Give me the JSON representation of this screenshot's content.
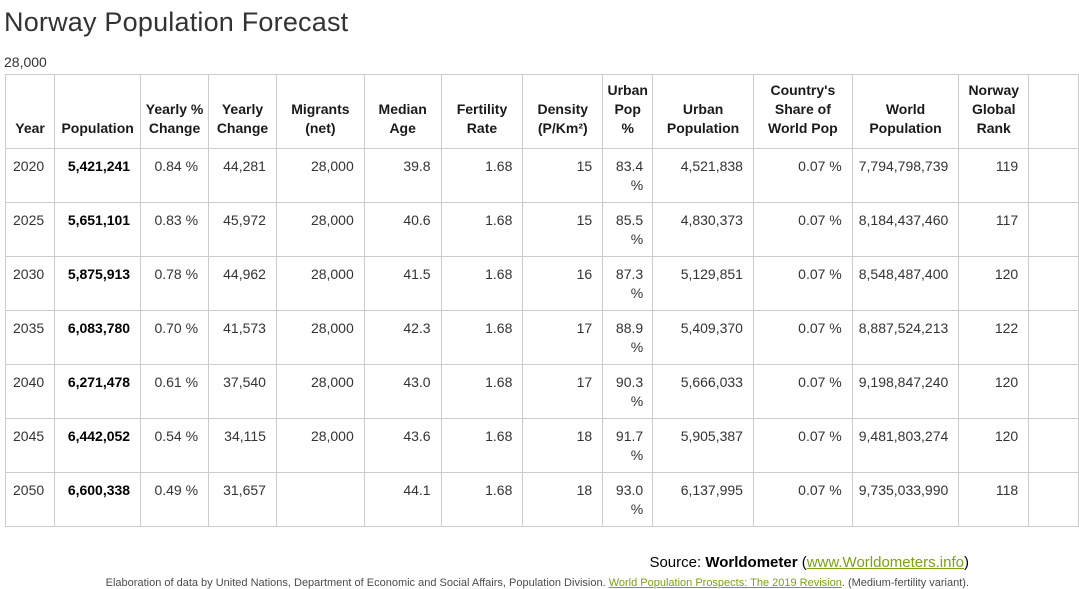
{
  "page": {
    "title": "Norway Population Forecast",
    "floating_label": "28,000"
  },
  "colors": {
    "link_green": "#7aa213",
    "border": "#cccccc",
    "title_text": "#333333",
    "body_text": "#333333"
  },
  "table": {
    "columns": [
      "Year",
      "Population",
      "Yearly % Change",
      "Yearly Change",
      "Migrants (net)",
      "Median Age",
      "Fertility Rate",
      "Density (P/Km²)",
      "Urban Pop %",
      "Urban Population",
      "Country's Share of World Pop",
      "World Population",
      "Norway Global Rank"
    ],
    "column_keys": [
      "year",
      "population",
      "yearly-pct-change",
      "yearly-change",
      "migrants-net",
      "median-age",
      "fertility-rate",
      "density",
      "urban-pop-pct",
      "urban-population",
      "share-of-world-pop",
      "world-population",
      "global-rank"
    ],
    "rows": [
      [
        "2020",
        "5,421,241",
        "0.84 %",
        "44,281",
        "28,000",
        "39.8",
        "1.68",
        "15",
        "83.4 %",
        "4,521,838",
        "0.07 %",
        "7,794,798,739",
        "119"
      ],
      [
        "2025",
        "5,651,101",
        "0.83 %",
        "45,972",
        "28,000",
        "40.6",
        "1.68",
        "15",
        "85.5 %",
        "4,830,373",
        "0.07 %",
        "8,184,437,460",
        "117"
      ],
      [
        "2030",
        "5,875,913",
        "0.78 %",
        "44,962",
        "28,000",
        "41.5",
        "1.68",
        "16",
        "87.3 %",
        "5,129,851",
        "0.07 %",
        "8,548,487,400",
        "120"
      ],
      [
        "2035",
        "6,083,780",
        "0.70 %",
        "41,573",
        "28,000",
        "42.3",
        "1.68",
        "17",
        "88.9 %",
        "5,409,370",
        "0.07 %",
        "8,887,524,213",
        "122"
      ],
      [
        "2040",
        "6,271,478",
        "0.61 %",
        "37,540",
        "28,000",
        "43.0",
        "1.68",
        "17",
        "90.3 %",
        "5,666,033",
        "0.07 %",
        "9,198,847,240",
        "120"
      ],
      [
        "2045",
        "6,442,052",
        "0.54 %",
        "34,115",
        "28,000",
        "43.6",
        "1.68",
        "18",
        "91.7 %",
        "5,905,387",
        "0.07 %",
        "9,481,803,274",
        "120"
      ],
      [
        "2050",
        "6,600,338",
        "0.49 %",
        "31,657",
        "",
        "44.1",
        "1.68",
        "18",
        "93.0 %",
        "6,137,995",
        "0.07 %",
        "9,735,033,990",
        "118"
      ]
    ]
  },
  "footer": {
    "source_prefix": "Source: ",
    "source_name": "Worldometer",
    "source_open": " (",
    "source_link": "www.Worldometers.info",
    "source_close": ")",
    "elaboration_prefix": "Elaboration of data by United Nations, Department of Economic and Social Affairs, Population Division. ",
    "elaboration_link": "World Population Prospects: The 2019 Revision",
    "elaboration_suffix": ". (Medium-fertility variant)."
  }
}
